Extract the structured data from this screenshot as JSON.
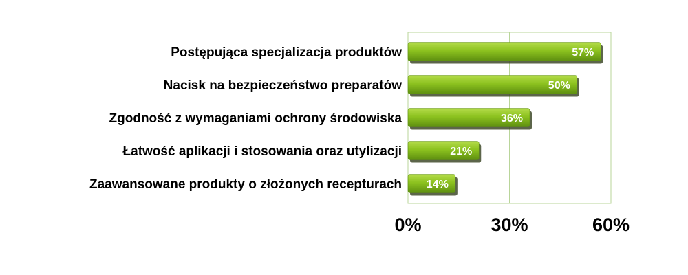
{
  "chart_data": {
    "type": "bar",
    "orientation": "horizontal",
    "categories": [
      "Postępująca specjalizacja produktów",
      "Nacisk na bezpieczeństwo preparatów",
      "Zgodność z wymaganiami ochrony środowiska",
      "Łatwość aplikacji i stosowania oraz utylizacji",
      "Zaawansowane produkty o złożonych recepturach"
    ],
    "values": [
      57,
      50,
      36,
      21,
      14
    ],
    "data_labels": [
      "57%",
      "50%",
      "36%",
      "21%",
      "14%"
    ],
    "xlim": [
      0,
      60
    ],
    "x_ticks": [
      0,
      30,
      60
    ],
    "x_tick_labels": [
      "0%",
      "30%",
      "60%"
    ],
    "grid": true,
    "colors": {
      "bar": "#8cc21f",
      "bar_light": "#b5dc4a",
      "bar_dark": "#5e8f10",
      "bar_shadow": "#3f4a2a",
      "gridline": "#b9d59a",
      "plot_border": "#b9d59a"
    }
  }
}
